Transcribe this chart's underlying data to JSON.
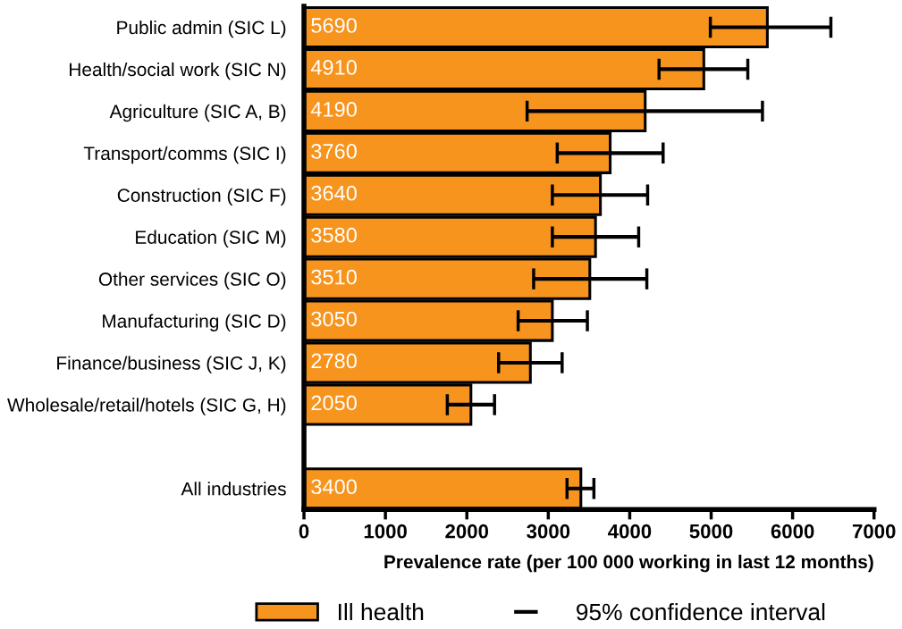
{
  "chart_data": {
    "type": "bar",
    "orientation": "horizontal",
    "xlabel": "Prevalence rate (per 100 000 working in last 12 months)",
    "categories": [
      "Public admin (SIC L)",
      "Health/social work (SIC N)",
      "Agriculture (SIC A, B)",
      "Transport/comms (SIC I)",
      "Construction (SIC F)",
      "Education (SIC M)",
      "Other services (SIC O)",
      "Manufacturing (SIC D)",
      "Finance/business (SIC J, K)",
      "Wholesale/retail/hotels (SIC G, H)",
      null,
      "All industries"
    ],
    "series": [
      {
        "name": "Ill health",
        "color": "#f7941e",
        "values": [
          5690,
          4910,
          4190,
          3760,
          3640,
          3580,
          3510,
          3050,
          2780,
          2050,
          null,
          3400
        ],
        "errors": [
          [
            4990,
            6470
          ],
          [
            4360,
            5450
          ],
          [
            2740,
            5630
          ],
          [
            3110,
            4410
          ],
          [
            3050,
            4220
          ],
          [
            3050,
            4110
          ],
          [
            2820,
            4210
          ],
          [
            2630,
            3480
          ],
          [
            2390,
            3170
          ],
          [
            1760,
            2340
          ],
          null,
          [
            3230,
            3560
          ]
        ]
      }
    ],
    "annotations": [
      "95% confidence interval"
    ],
    "xlim": [
      0,
      7000
    ],
    "xticks": [
      0,
      1000,
      2000,
      3000,
      4000,
      5000,
      6000,
      7000
    ],
    "data_labels": true,
    "grid": false,
    "legend": "bottom"
  }
}
